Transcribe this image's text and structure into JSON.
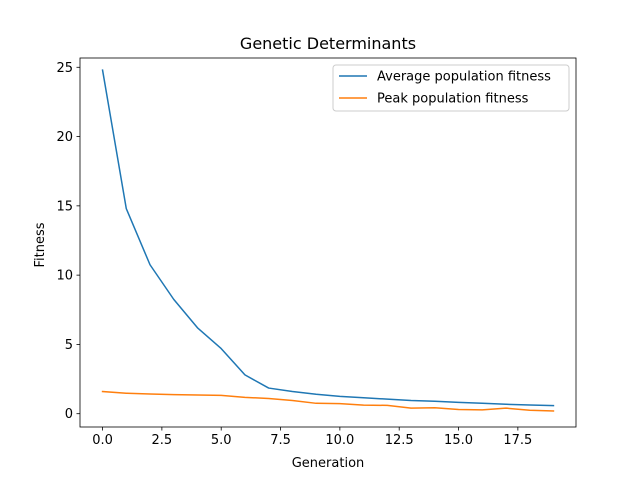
{
  "chart_data": {
    "type": "line",
    "title": "Genetic Determinants",
    "xlabel": "Generation",
    "ylabel": "Fitness",
    "xlim": [
      -0.95,
      19.95
    ],
    "ylim": [
      -0.96,
      25.67
    ],
    "xticks": [
      0,
      2.5,
      5,
      7.5,
      10,
      12.5,
      15,
      17.5
    ],
    "xtick_labels": [
      "0.0",
      "2.5",
      "5.0",
      "7.5",
      "10.0",
      "12.5",
      "15.0",
      "17.5"
    ],
    "yticks": [
      0,
      5,
      10,
      15,
      20,
      25
    ],
    "ytick_labels": [
      "0",
      "5",
      "10",
      "15",
      "20",
      "25"
    ],
    "grid": false,
    "legend_position": "top-right",
    "x": [
      0,
      1,
      2,
      3,
      4,
      5,
      6,
      7,
      8,
      9,
      10,
      11,
      12,
      13,
      14,
      15,
      16,
      17,
      18,
      19
    ],
    "series": [
      {
        "name": "Average population fitness",
        "color": "#1f77b4",
        "values": [
          24.8,
          14.8,
          10.75,
          8.25,
          6.2,
          4.7,
          2.8,
          1.85,
          1.6,
          1.4,
          1.25,
          1.15,
          1.05,
          0.95,
          0.9,
          0.82,
          0.75,
          0.68,
          0.63,
          0.58
        ]
      },
      {
        "name": "Peak population fitness",
        "color": "#ff7f0e",
        "values": [
          1.6,
          1.48,
          1.42,
          1.38,
          1.35,
          1.32,
          1.18,
          1.1,
          0.95,
          0.75,
          0.73,
          0.62,
          0.6,
          0.4,
          0.43,
          0.3,
          0.28,
          0.4,
          0.25,
          0.2
        ]
      }
    ]
  }
}
